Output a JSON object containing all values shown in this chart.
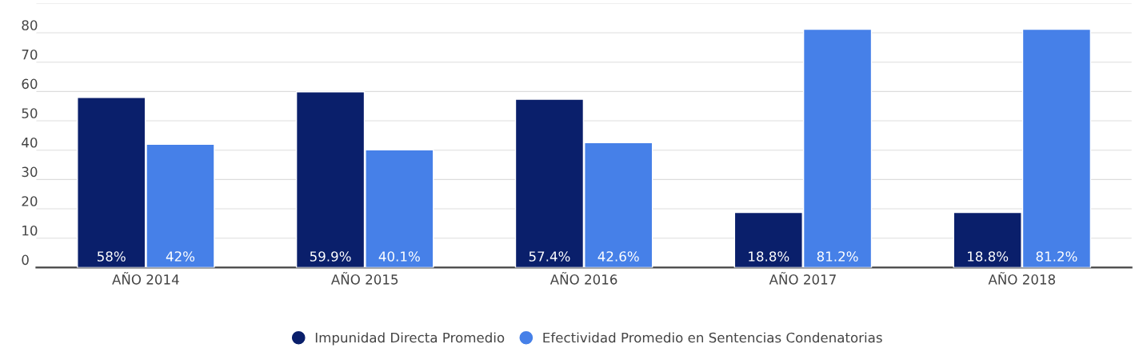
{
  "chart_data": {
    "type": "bar",
    "categories": [
      "AÑO 2014",
      "AÑO 2015",
      "AÑO 2016",
      "AÑO 2017",
      "AÑO 2018"
    ],
    "series": [
      {
        "name": "Impunidad Directa Promedio",
        "color": "#0a1f6b",
        "values": [
          58,
          59.9,
          57.4,
          18.8,
          18.8
        ],
        "value_labels": [
          "58%",
          "59.9%",
          "57.4%",
          "18.8%",
          "18.8%"
        ]
      },
      {
        "name": "Efectividad Promedio en Sentencias Condenatorias",
        "color": "#4680e8",
        "values": [
          42,
          40.1,
          42.6,
          81.2,
          81.2
        ],
        "value_labels": [
          "42%",
          "40.1%",
          "42.6%",
          "81.2%",
          "81.2%"
        ]
      }
    ],
    "ylim": [
      0,
      90
    ],
    "yticks": [
      0,
      10,
      20,
      30,
      40,
      50,
      60,
      70,
      80,
      {
        "value": 90,
        "label": null
      }
    ],
    "grid": "y",
    "legend": "bottom"
  }
}
